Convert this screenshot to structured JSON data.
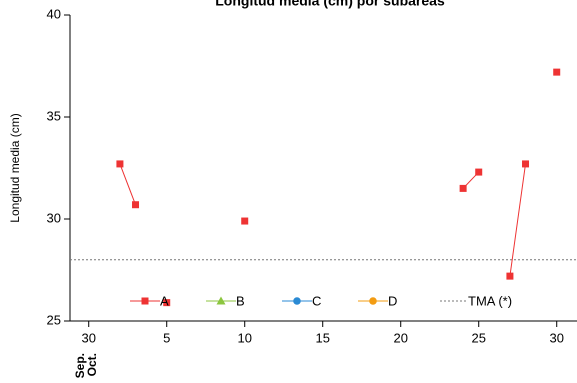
{
  "chart_data": {
    "type": "line",
    "title": "Longitud media (cm) por subareas",
    "y_label": "Longitud media (cm)",
    "x_period_labels": [
      "Sep.",
      "Oct."
    ],
    "x": [
      2,
      3,
      4,
      5,
      9,
      10,
      23,
      24,
      25,
      26,
      27,
      28,
      29,
      30
    ],
    "series": [
      {
        "name": "A",
        "color": "#ee3333",
        "marker": "square",
        "values": [
          32.7,
          30.7,
          null,
          25.9,
          null,
          29.9,
          null,
          31.5,
          32.3,
          null,
          27.2,
          32.7,
          null,
          37.2
        ]
      },
      {
        "name": "B",
        "color": "#8cc63f",
        "marker": "triangle",
        "values": [
          null,
          null,
          null,
          null,
          null,
          null,
          null,
          null,
          null,
          null,
          null,
          null,
          null,
          null
        ]
      },
      {
        "name": "C",
        "color": "#2a8ad4",
        "marker": "circle",
        "values": [
          null,
          null,
          null,
          null,
          null,
          null,
          null,
          null,
          null,
          null,
          null,
          null,
          null,
          null
        ]
      },
      {
        "name": "D",
        "color": "#f39c12",
        "marker": "circle",
        "values": [
          null,
          null,
          null,
          null,
          null,
          null,
          null,
          null,
          null,
          null,
          null,
          null,
          null,
          null
        ]
      }
    ],
    "reference_lines": [
      {
        "name": "TMA (*)",
        "value": 28,
        "color": "#777777"
      }
    ],
    "xlim": [
      -1.2,
      31.3
    ],
    "ylim": [
      25,
      40
    ],
    "xticks": [
      {
        "value": 0,
        "label": "30"
      },
      5,
      10,
      15,
      20,
      25,
      30
    ],
    "yticks": [
      25,
      30,
      35,
      40
    ]
  }
}
